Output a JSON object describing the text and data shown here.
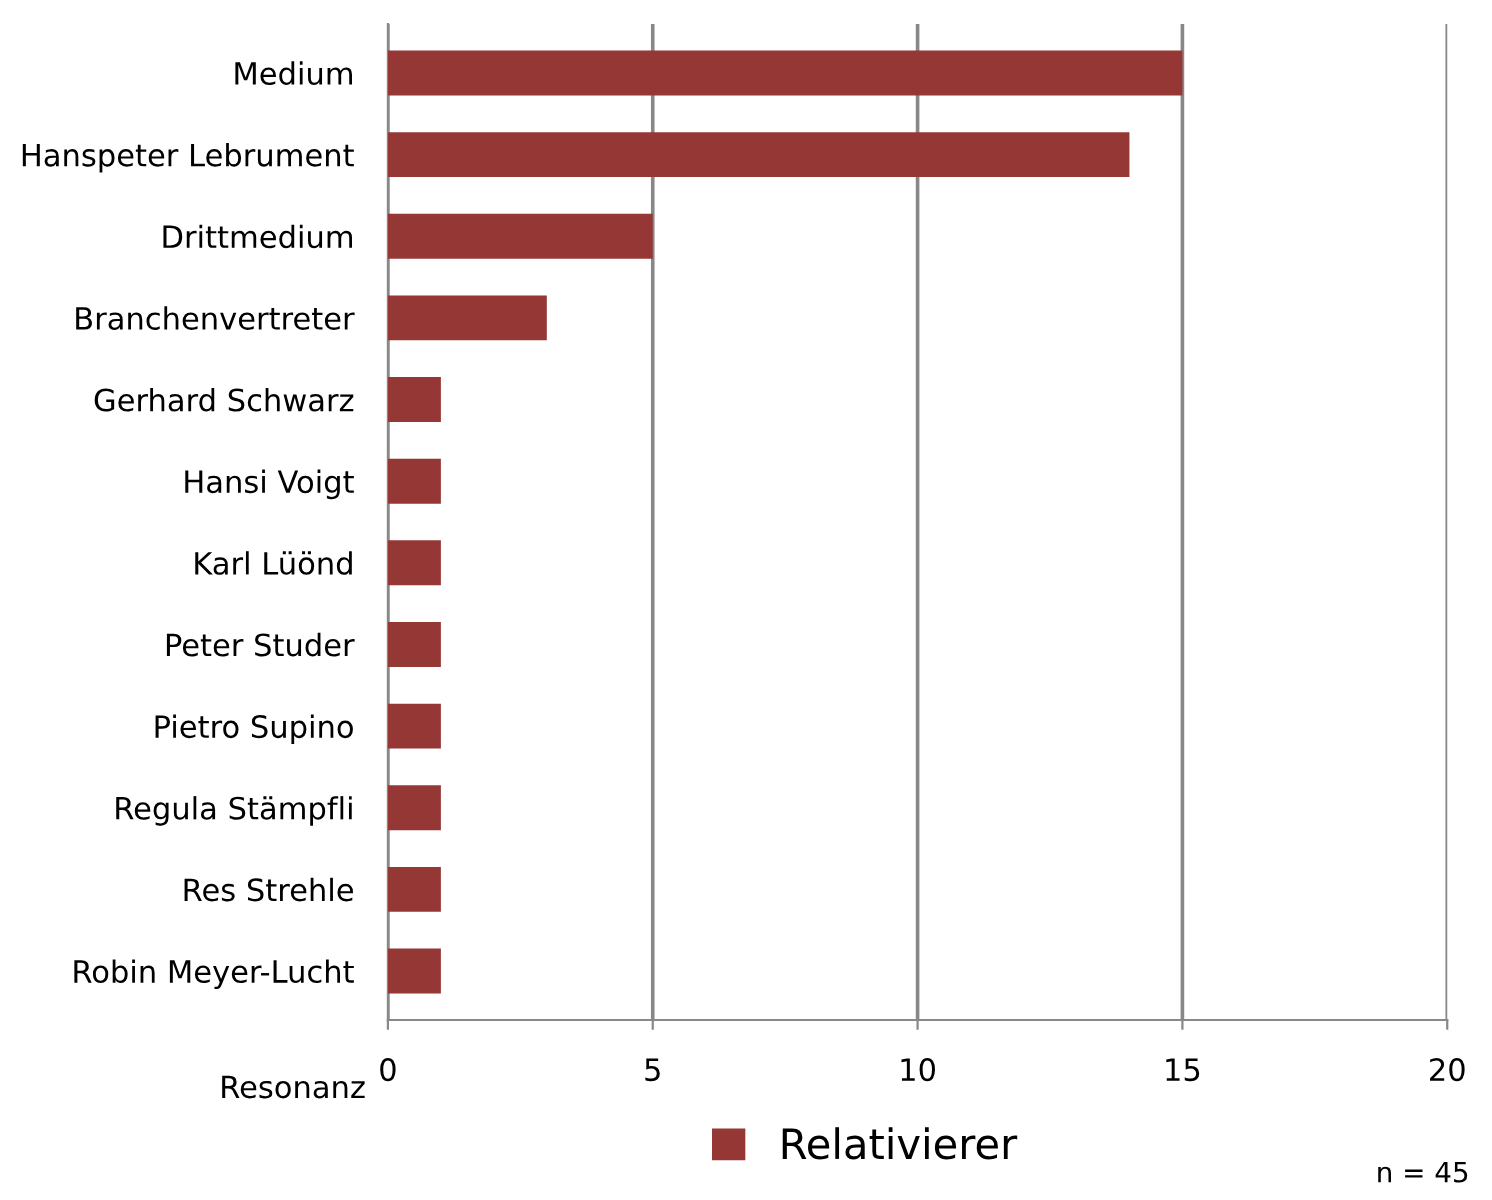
{
  "chart_data": {
    "type": "bar",
    "orientation": "horizontal",
    "xlabel": "Resonanz",
    "categories": [
      "Medium",
      "Hanspeter Lebrument",
      "Drittmedium",
      "Branchenvertreter",
      "Gerhard Schwarz",
      "Hansi Voigt",
      "Karl Lüönd",
      "Peter Studer",
      "Pietro Supino",
      "Regula Stämpfli",
      "Res Strehle",
      "Robin Meyer-Lucht"
    ],
    "series": [
      {
        "name": "Relativierer",
        "color": "#953735",
        "values": [
          15,
          14,
          5,
          3,
          1,
          1,
          1,
          1,
          1,
          1,
          1,
          1
        ]
      }
    ],
    "xlim": [
      0,
      20
    ],
    "xticks": [
      0,
      5,
      10,
      15,
      20
    ],
    "grid": "x",
    "legend": "bottom",
    "annotations": [
      "n = 45"
    ]
  }
}
